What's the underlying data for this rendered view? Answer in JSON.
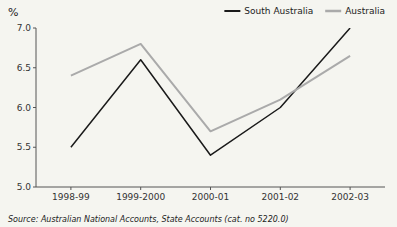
{
  "chart_data": {
    "type": "line",
    "ylabel": "%",
    "categories": [
      "1998-99",
      "1999-2000",
      "2000-01",
      "2001-02",
      "2002-03"
    ],
    "series": [
      {
        "name": "South Australia",
        "color": "#1a1a1a",
        "values": [
          5.5,
          6.6,
          5.4,
          6.0,
          7.0
        ]
      },
      {
        "name": "Australia",
        "color": "#aaaaaa",
        "values": [
          6.4,
          6.8,
          5.7,
          6.1,
          6.65
        ]
      }
    ],
    "ylim": [
      5.0,
      7.0
    ],
    "yticks": [
      {
        "value": 5.0,
        "label": "5.0"
      },
      {
        "value": 5.5,
        "label": "5.5"
      },
      {
        "value": 6.0,
        "label": "6.0"
      },
      {
        "value": 6.5,
        "label": "6.5"
      },
      {
        "value": 7.0,
        "label": "7.0"
      }
    ],
    "grid": false,
    "legend": "upper right",
    "annotations": [
      "Source: Australian National Accounts, State Accounts (cat. no 5220.0)"
    ]
  }
}
